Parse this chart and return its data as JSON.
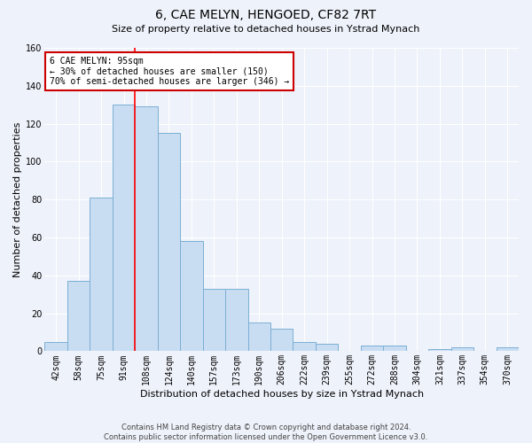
{
  "title": "6, CAE MELYN, HENGOED, CF82 7RT",
  "subtitle": "Size of property relative to detached houses in Ystrad Mynach",
  "xlabel": "Distribution of detached houses by size in Ystrad Mynach",
  "ylabel": "Number of detached properties",
  "categories": [
    "42sqm",
    "58sqm",
    "75sqm",
    "91sqm",
    "108sqm",
    "124sqm",
    "140sqm",
    "157sqm",
    "173sqm",
    "190sqm",
    "206sqm",
    "222sqm",
    "239sqm",
    "255sqm",
    "272sqm",
    "288sqm",
    "304sqm",
    "321sqm",
    "337sqm",
    "354sqm",
    "370sqm"
  ],
  "values": [
    5,
    37,
    81,
    130,
    129,
    115,
    58,
    33,
    33,
    15,
    12,
    5,
    4,
    0,
    3,
    3,
    0,
    1,
    2,
    0,
    2
  ],
  "bar_color": "#c9ddf2",
  "bar_edge_color": "#7bafd4",
  "ylim": [
    0,
    160
  ],
  "yticks": [
    0,
    20,
    40,
    60,
    80,
    100,
    120,
    140,
    160
  ],
  "red_line_index": 3,
  "annotation_line1": "6 CAE MELYN: 95sqm",
  "annotation_line2": "← 30% of detached houses are smaller (150)",
  "annotation_line3": "70% of semi-detached houses are larger (346) →",
  "footer_line1": "Contains HM Land Registry data © Crown copyright and database right 2024.",
  "footer_line2": "Contains public sector information licensed under the Open Government Licence v3.0.",
  "background_color": "#eef2fa",
  "grid_color": "#ffffff",
  "annotation_box_facecolor": "#ffffff",
  "annotation_box_edgecolor": "#cc0000",
  "title_fontsize": 10,
  "subtitle_fontsize": 8,
  "ylabel_fontsize": 8,
  "xlabel_fontsize": 8,
  "tick_fontsize": 7,
  "footer_fontsize": 6
}
